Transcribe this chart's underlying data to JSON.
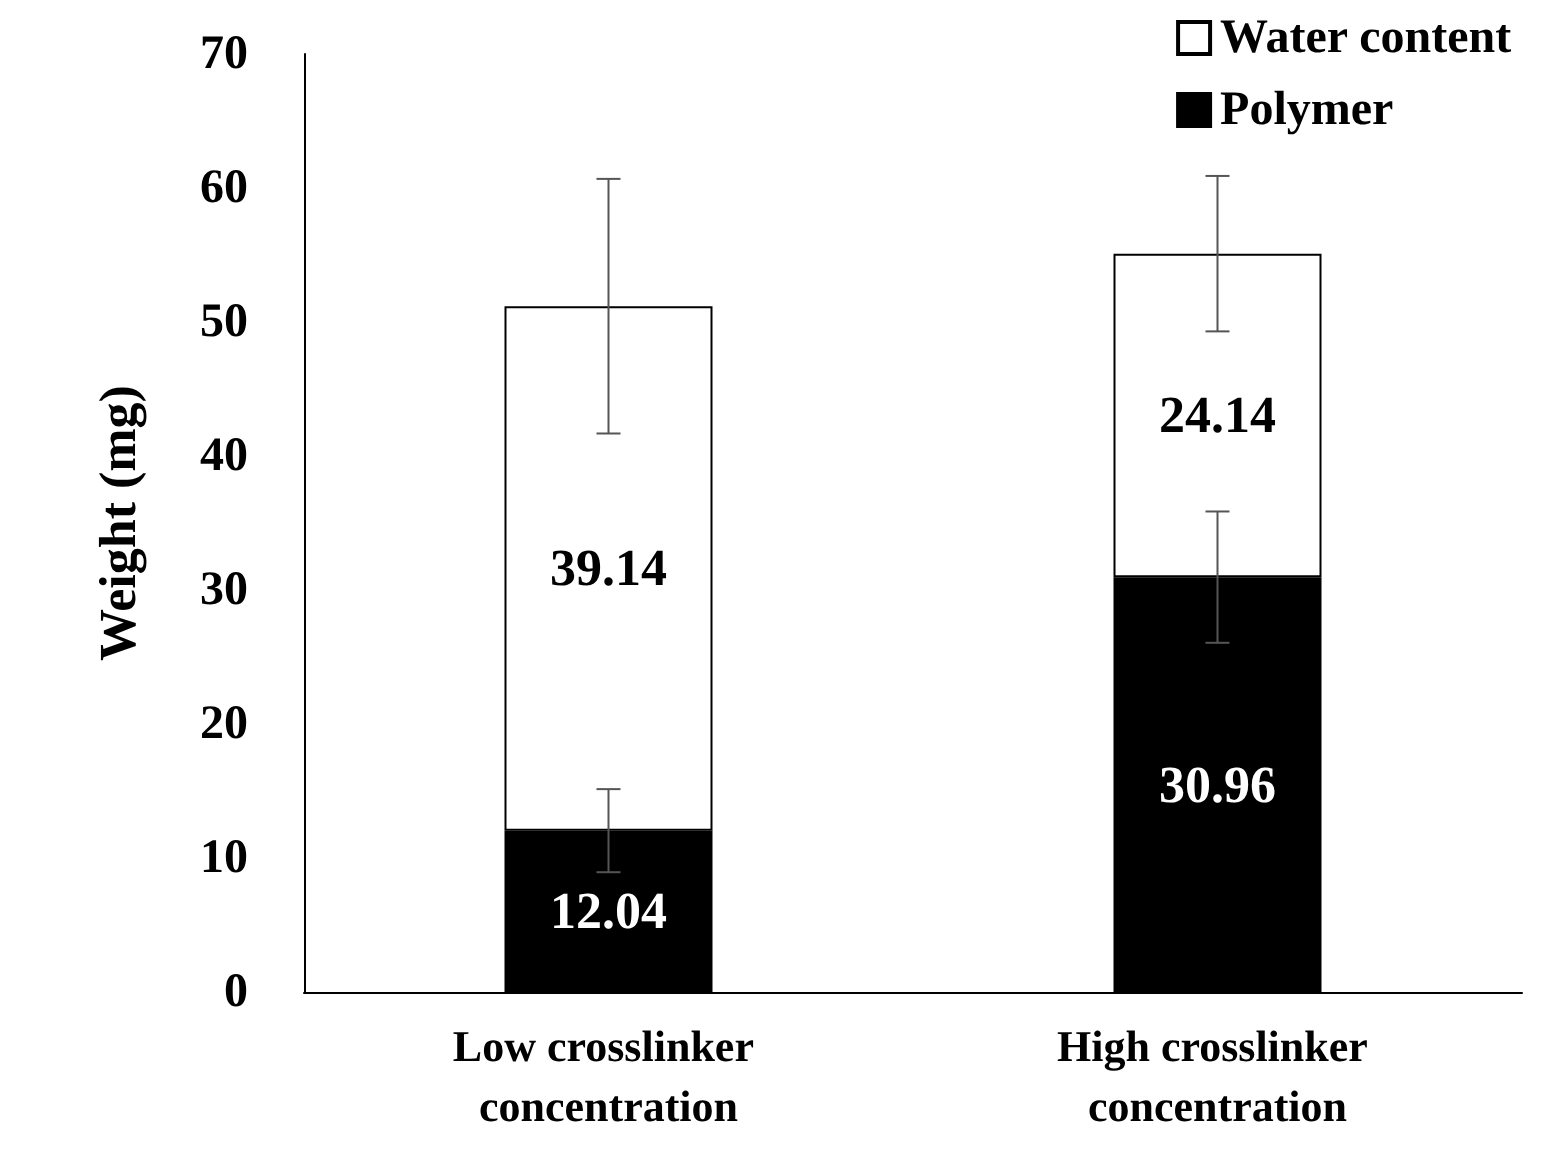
{
  "chart_data": {
    "type": "bar",
    "stacked": true,
    "ylabel": "Weight (mg)",
    "categories": [
      "Low crosslinker concentration",
      "High crosslinker concentration"
    ],
    "series": [
      {
        "name": "Polymer",
        "color": "#000000",
        "values": [
          12.04,
          30.96
        ],
        "errors": [
          3.1,
          4.9
        ]
      },
      {
        "name": "Water content",
        "color": "#ffffff",
        "values": [
          39.14,
          24.14
        ],
        "errors": [
          9.5,
          5.8
        ]
      }
    ],
    "ylim": [
      0,
      70
    ],
    "yticks": [
      0,
      10,
      20,
      30,
      40,
      50,
      60,
      70
    ],
    "data_labels": true,
    "legend": "top right",
    "grid": false
  }
}
